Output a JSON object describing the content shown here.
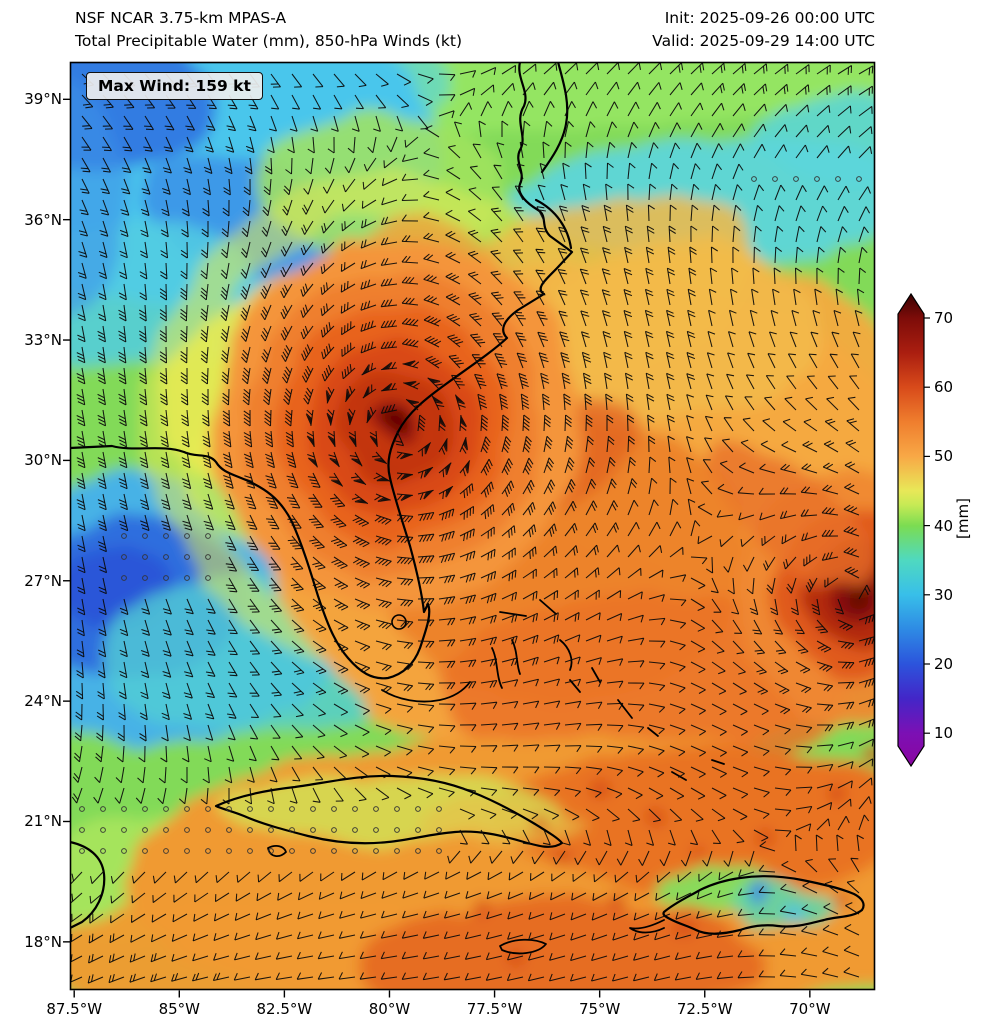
{
  "header": {
    "model_line": "NSF NCAR 3.75-km MPAS-A",
    "field_line": "Total Precipitable Water (mm), 850-hPa Winds (kt)",
    "init_line": "Init: 2025-09-26 00:00 UTC",
    "valid_line": "Valid: 2025-09-29 14:00 UTC"
  },
  "map": {
    "max_wind_label": "Max Wind: 159 kt"
  },
  "axes": {
    "lat_ticks": [
      {
        "label": "39°N",
        "lat": 39
      },
      {
        "label": "36°N",
        "lat": 36
      },
      {
        "label": "33°N",
        "lat": 33
      },
      {
        "label": "30°N",
        "lat": 30
      },
      {
        "label": "27°N",
        "lat": 27
      },
      {
        "label": "24°N",
        "lat": 24
      },
      {
        "label": "21°N",
        "lat": 21
      },
      {
        "label": "18°N",
        "lat": 18
      }
    ],
    "lon_ticks": [
      {
        "label": "87.5°W",
        "lon": -87.5
      },
      {
        "label": "85°W",
        "lon": -85
      },
      {
        "label": "82.5°W",
        "lon": -82.5
      },
      {
        "label": "80°W",
        "lon": -80
      },
      {
        "label": "77.5°W",
        "lon": -77.5
      },
      {
        "label": "75°W",
        "lon": -75
      },
      {
        "label": "72.5°W",
        "lon": -72.5
      },
      {
        "label": "70°W",
        "lon": -70
      }
    ]
  },
  "colorbar": {
    "label": "[mm]",
    "ticks": [
      70,
      60,
      50,
      40,
      30,
      20,
      10
    ],
    "min": 10,
    "max": 70,
    "over_color": "#3a0202",
    "under_color": "#8a06a0",
    "stops": [
      {
        "value": 70,
        "color": "#7d0c09"
      },
      {
        "value": 65,
        "color": "#aa1e10"
      },
      {
        "value": 60,
        "color": "#d84a1a"
      },
      {
        "value": 55,
        "color": "#ef7e2e"
      },
      {
        "value": 50,
        "color": "#f8a846"
      },
      {
        "value": 45,
        "color": "#e8e858"
      },
      {
        "value": 43,
        "color": "#c6ea55"
      },
      {
        "value": 40,
        "color": "#7bdc52"
      },
      {
        "value": 35,
        "color": "#4fd9c0"
      },
      {
        "value": 30,
        "color": "#38bfe9"
      },
      {
        "value": 25,
        "color": "#2e8ae4"
      },
      {
        "value": 20,
        "color": "#2c54dc"
      },
      {
        "value": 15,
        "color": "#4326c8"
      },
      {
        "value": 10,
        "color": "#7c10b4"
      }
    ]
  },
  "chart_data": {
    "type": "heatmap",
    "title": "NSF NCAR 3.75-km MPAS-A — Total Precipitable Water (mm) with 850-hPa wind barbs (kt)",
    "init_time": "2025-09-26 00:00 UTC",
    "valid_time": "2025-09-29 14:00 UTC",
    "units": "mm",
    "max_wind_kt": 159,
    "lon_range": [
      -87.6,
      -68.45
    ],
    "lat_range": [
      16.8,
      39.93
    ],
    "colorbar_range": [
      10,
      70
    ],
    "legend_position": "right",
    "grid": false,
    "features": [
      {
        "name": "major-hurricane-offshore-southeast-us",
        "kind": "cyclone",
        "lon": -79.75,
        "lat": 30.75,
        "tpw_mm": 72,
        "intensity": 1.0,
        "note": "tight cyclonic circulation with dark-red TPW core; max wind 159 kt"
      },
      {
        "name": "eastern-atlantic-vortex",
        "kind": "cyclone",
        "lon": -68.9,
        "lat": 26.65,
        "tpw_mm": 68,
        "intensity": 0.5,
        "note": "second cyclonic swirl at right edge of domain"
      },
      {
        "name": "gulf-of-mexico-dry-slot",
        "kind": "minimum",
        "lon": -85.9,
        "lat": 26.3,
        "tpw_mm": 22
      },
      {
        "name": "northwest-atlantic-dry-air",
        "kind": "minimum",
        "lon": -85.6,
        "lat": 38.0,
        "tpw_mm": 26
      },
      {
        "name": "central-atlantic-moist-plume",
        "kind": "maximum",
        "lon": -73.5,
        "lat": 27.5,
        "tpw_mm": 57
      },
      {
        "name": "caribbean-moist-band",
        "kind": "maximum",
        "lon": -75.0,
        "lat": 19.5,
        "tpw_mm": 60
      },
      {
        "name": "background-environment",
        "kind": "mean",
        "lon": -82.0,
        "lat": 36.0,
        "tpw_mm": 40
      }
    ],
    "calm_regions": [
      {
        "lon_min": -87.5,
        "lon_max": -78.8,
        "lat_min": 20.1,
        "lat_max": 21.6,
        "note": "stippled calm-wind dots south of Cuba/Gulf"
      },
      {
        "lon_min": -71.6,
        "lon_max": -68.5,
        "lat_min": 36.5,
        "lat_max": 37.5,
        "note": "stippled calm-wind dots northeast corner"
      },
      {
        "lon_min": -86.8,
        "lon_max": -83.9,
        "lat_min": 26.9,
        "lat_max": 28.2,
        "note": "scattered calm dots over eastern Gulf"
      }
    ]
  }
}
